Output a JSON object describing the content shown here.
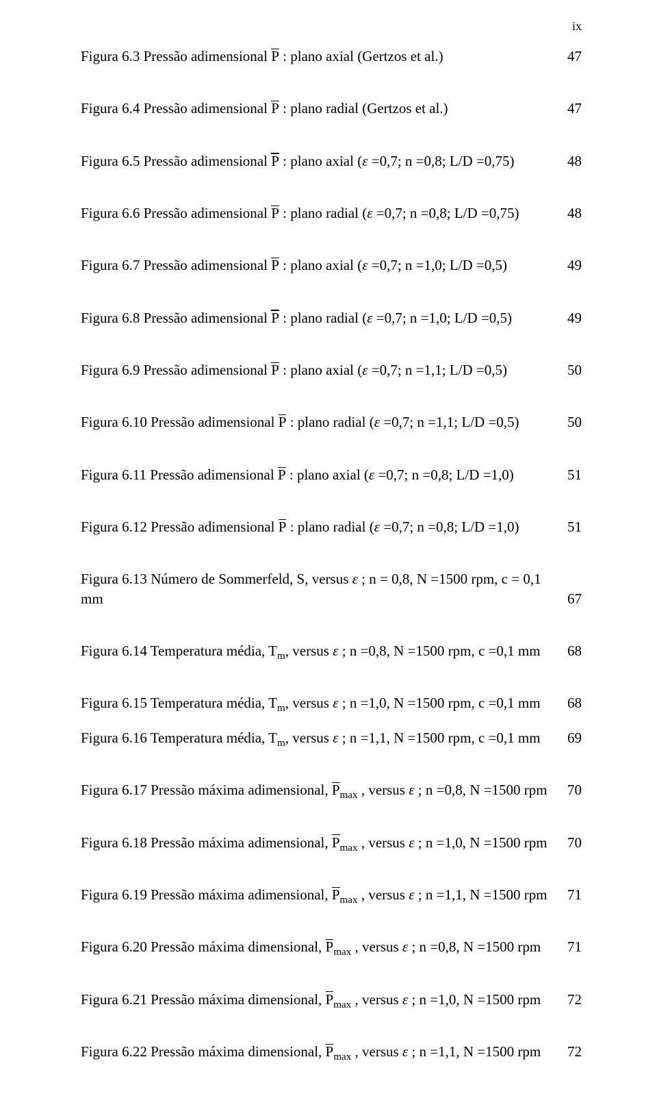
{
  "page_number_roman": "ix",
  "symbols": {
    "P": "P",
    "epsilon": "ε",
    "Pmax_sub": "max"
  },
  "entries": [
    {
      "pre": "Figura 6.3 Pressão adimensional ",
      "pbar": true,
      "post": " : plano axial (Gertzos et al.)",
      "page": "47"
    },
    {
      "pre": "Figura 6.4 Pressão adimensional  ",
      "pbar": true,
      "post": " : plano radial (Gertzos et al.)",
      "page": "47"
    },
    {
      "pre": "Figura 6.5 Pressão adimensional ",
      "pbar": true,
      "post_eps": " : plano axial (",
      "post2": " =0,7; n =0,8; L/D =0,75)",
      "page": "48"
    },
    {
      "pre": "Figura 6.6 Pressão adimensional ",
      "pbar": true,
      "post_eps": " : plano radial (",
      "post2": " =0,7; n =0,8; L/D =0,75)",
      "page": "48"
    },
    {
      "pre": "Figura 6.7 Pressão adimensional ",
      "pbar": true,
      "post_eps": " : plano axial (",
      "post2": " =0,7; n =1,0; L/D =0,5)",
      "page": "49"
    },
    {
      "pre": "Figura 6.8 Pressão adimensional ",
      "pbar": true,
      "post_eps": " : plano radial (",
      "post2": " =0,7; n =1,0; L/D =0,5)",
      "page": "49"
    },
    {
      "pre": "Figura 6.9 Pressão adimensional ",
      "pbar": true,
      "post_eps": " : plano axial (",
      "post2": " =0,7; n =1,1; L/D =0,5)",
      "page": "50"
    },
    {
      "pre": "Figura 6.10 Pressão adimensional ",
      "pbar": true,
      "post_eps": " : plano radial (",
      "post2": " =0,7; n =1,1; L/D =0,5)",
      "page": "50"
    },
    {
      "pre": "Figura 6.11 Pressão adimensional ",
      "pbar": true,
      "post_eps": " : plano axial (",
      "post2": " =0,7; n =0,8; L/D =1,0)",
      "page": "51"
    },
    {
      "pre": "Figura 6.12 Pressão adimensional ",
      "pbar": true,
      "post_eps": " : plano radial (",
      "post2": " =0,7; n =0,8; L/D =1,0)",
      "page": "51"
    },
    {
      "pre": "Figura 6.13 Número de Sommerfeld, S, versus ",
      "eps_only": true,
      "post": " ; n = 0,8, N =1500 rpm, c = 0,1 mm",
      "page": "67"
    },
    {
      "pre": "Figura 6.14 Temperatura média, T",
      "sub": "m",
      "mid": ", versus ",
      "eps_only": true,
      "post": " ; n =0,8, N =1500 rpm, c =0,1 mm",
      "page": "68"
    },
    {
      "pre": "Figura 6.15 Temperatura média, T",
      "sub": "m",
      "mid": ", versus ",
      "eps_only": true,
      "post": " ; n =1,0, N =1500 rpm, c =0,1 mm",
      "page": "68",
      "tight": true
    },
    {
      "pre": "Figura 6.16 Temperatura média, T",
      "sub": "m",
      "mid": ", versus ",
      "eps_only": true,
      "post": " ; n =1,1, N =1500 rpm, c =0,1 mm",
      "page": "69"
    },
    {
      "pre": "Figura 6.17 Pressão máxima adimensional, ",
      "pbar_max": true,
      "mid": " , versus ",
      "eps_only": true,
      "post": " ; n =0,8, N =1500 rpm",
      "page": "70"
    },
    {
      "pre": "Figura 6.18 Pressão máxima adimensional, ",
      "pbar_max": true,
      "mid": " , versus ",
      "eps_only": true,
      "post": " ; n =1,0, N =1500 rpm",
      "page": "70"
    },
    {
      "pre": "Figura 6.19 Pressão máxima adimensional, ",
      "pbar_max": true,
      "mid": " , versus ",
      "eps_only": true,
      "post": " ; n =1,1, N =1500 rpm",
      "page": "71"
    },
    {
      "pre": "Figura 6.20 Pressão máxima dimensional, ",
      "pbar_max": true,
      "mid": " , versus ",
      "eps_only": true,
      "post": " ; n =0,8, N =1500 rpm",
      "page": "71"
    },
    {
      "pre": "Figura 6.21 Pressão máxima dimensional, ",
      "pbar_max": true,
      "mid": " , versus ",
      "eps_only": true,
      "post": " ; n =1,0, N =1500 rpm",
      "page": "72"
    },
    {
      "pre": "Figura 6.22 Pressão máxima dimensional, ",
      "pbar_max": true,
      "mid": " , versus ",
      "eps_only": true,
      "post": " ; n =1,1, N =1500 rpm",
      "page": "72"
    }
  ]
}
